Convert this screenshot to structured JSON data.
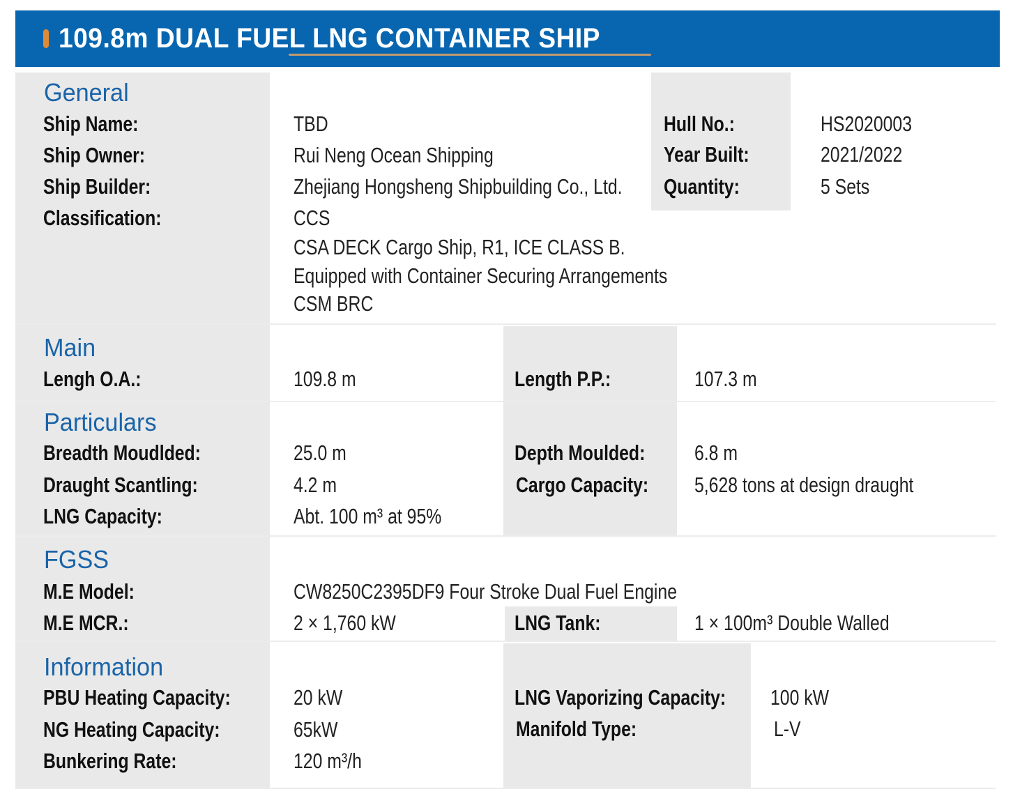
{
  "title": "109.8m DUAL FUEL LNG CONTAINER SHIP",
  "colors": {
    "header": "#0866b0",
    "accent": "#e08a38",
    "section_title": "#1a64a8",
    "label_bg": "#e9e9e9"
  },
  "general": {
    "title": "General",
    "ship_name_label": "Ship Name:",
    "ship_name": "TBD",
    "ship_owner_label": "Ship Owner:",
    "ship_owner": "Rui Neng Ocean Shipping",
    "ship_builder_label": "Ship Builder:",
    "ship_builder": "Zhejiang Hongsheng Shipbuilding Co., Ltd.",
    "classification_label": "Classification:",
    "classification": [
      "CCS",
      "CSA DECK Cargo Ship, R1, ICE CLASS B.",
      "Equipped with Container Securing Arrangements",
      "CSM BRC"
    ],
    "hull_no_label": "Hull No.:",
    "hull_no": "HS2020003",
    "year_built_label": "Year Built:",
    "year_built": "2021/2022",
    "quantity_label": "Quantity:",
    "quantity": "5 Sets"
  },
  "main": {
    "title": "Main",
    "loa_label": "Lengh O.A.:",
    "loa": "109.8 m",
    "lpp_label": "Length P.P.:",
    "lpp": "107.3 m"
  },
  "particulars": {
    "title": "Particulars",
    "breadth_label": "Breadth Moudlded:",
    "breadth": "25.0 m",
    "draught_label": "Draught Scantling:",
    "draught": "4.2 m",
    "lng_capacity_label": "LNG Capacity:",
    "lng_capacity": "Abt. 100 m³ at 95%",
    "depth_label": "Depth Moulded:",
    "depth": "6.8 m",
    "cargo_label": "Cargo Capacity:",
    "cargo": "5,628 tons at design draught"
  },
  "fgss": {
    "title": "FGSS",
    "me_model_label": "M.E Model:",
    "me_model": "CW8250C2395DF9 Four Stroke Dual Fuel Engine",
    "me_mcr_label": "M.E MCR.:",
    "me_mcr": "2 × 1,760 kW",
    "lng_tank_label": "LNG Tank:",
    "lng_tank": "1 × 100m³ Double Walled"
  },
  "information": {
    "title": "Information",
    "pbu_label": "PBU Heating Capacity:",
    "pbu": "20 kW",
    "ng_label": "NG Heating Capacity:",
    "ng": "65kW",
    "bunkering_label": "Bunkering Rate:",
    "bunkering": "120 m³/h",
    "vaporizing_label": "LNG Vaporizing Capacity:",
    "vaporizing": "100 kW",
    "manifold_label": "Manifold Type:",
    "manifold": "L-V"
  }
}
